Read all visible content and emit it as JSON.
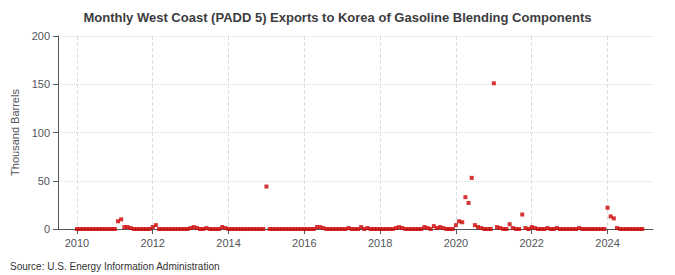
{
  "chart_data": {
    "type": "scatter",
    "title": "Monthly West Coast (PADD 5) Exports to Korea of Gasoline Blending Components",
    "ylabel": "Thousand Barrels",
    "annotations": [
      "Source: U.S. Energy Information Administration"
    ],
    "color": "#cc0000",
    "marker": "square",
    "grid": true,
    "xlim": [
      2009.5,
      2025.2
    ],
    "xticks": [
      2010,
      2012,
      2014,
      2016,
      2018,
      2020,
      2022,
      2024
    ],
    "ylim": [
      0,
      200
    ],
    "yticks": [
      0,
      50,
      100,
      150,
      200
    ],
    "x": [
      2010.0,
      2010.083,
      2010.167,
      2010.25,
      2010.333,
      2010.417,
      2010.5,
      2010.583,
      2010.667,
      2010.75,
      2010.833,
      2010.917,
      2011.0,
      2011.083,
      2011.167,
      2011.25,
      2011.333,
      2011.417,
      2011.5,
      2011.583,
      2011.667,
      2011.75,
      2011.833,
      2011.917,
      2012.0,
      2012.083,
      2012.167,
      2012.25,
      2012.333,
      2012.417,
      2012.5,
      2012.583,
      2012.667,
      2012.75,
      2012.833,
      2012.917,
      2013.0,
      2013.083,
      2013.167,
      2013.25,
      2013.333,
      2013.417,
      2013.5,
      2013.583,
      2013.667,
      2013.75,
      2013.833,
      2013.917,
      2014.0,
      2014.083,
      2014.167,
      2014.25,
      2014.333,
      2014.417,
      2014.5,
      2014.583,
      2014.667,
      2014.75,
      2014.833,
      2014.917,
      2015.0,
      2015.083,
      2015.167,
      2015.25,
      2015.333,
      2015.417,
      2015.5,
      2015.583,
      2015.667,
      2015.75,
      2015.833,
      2015.917,
      2016.0,
      2016.083,
      2016.167,
      2016.25,
      2016.333,
      2016.417,
      2016.5,
      2016.583,
      2016.667,
      2016.75,
      2016.833,
      2016.917,
      2017.0,
      2017.083,
      2017.167,
      2017.25,
      2017.333,
      2017.417,
      2017.5,
      2017.583,
      2017.667,
      2017.75,
      2017.833,
      2017.917,
      2018.0,
      2018.083,
      2018.167,
      2018.25,
      2018.333,
      2018.417,
      2018.5,
      2018.583,
      2018.667,
      2018.75,
      2018.833,
      2018.917,
      2019.0,
      2019.083,
      2019.167,
      2019.25,
      2019.333,
      2019.417,
      2019.5,
      2019.583,
      2019.667,
      2019.75,
      2019.833,
      2019.917,
      2020.0,
      2020.083,
      2020.167,
      2020.25,
      2020.333,
      2020.417,
      2020.5,
      2020.583,
      2020.667,
      2020.75,
      2020.833,
      2020.917,
      2021.0,
      2021.083,
      2021.167,
      2021.25,
      2021.333,
      2021.417,
      2021.5,
      2021.583,
      2021.667,
      2021.75,
      2021.833,
      2021.917,
      2022.0,
      2022.083,
      2022.167,
      2022.25,
      2022.333,
      2022.417,
      2022.5,
      2022.583,
      2022.667,
      2022.75,
      2022.833,
      2022.917,
      2023.0,
      2023.083,
      2023.167,
      2023.25,
      2023.333,
      2023.417,
      2023.5,
      2023.583,
      2023.667,
      2023.75,
      2023.833,
      2023.917,
      2024.0,
      2024.083,
      2024.167,
      2024.25,
      2024.333,
      2024.417,
      2024.5,
      2024.583,
      2024.667,
      2024.75,
      2024.833,
      2024.917
    ],
    "values": [
      0,
      0,
      0,
      0,
      0,
      0,
      0,
      0,
      0,
      0,
      0,
      0,
      0,
      8,
      10,
      2,
      2,
      1,
      0,
      0,
      0,
      0,
      0,
      0,
      2,
      4,
      0,
      0,
      0,
      0,
      0,
      0,
      0,
      0,
      0,
      0,
      1,
      2,
      1,
      0,
      0,
      1,
      0,
      0,
      0,
      0,
      2,
      1,
      0,
      0,
      0,
      0,
      0,
      0,
      0,
      0,
      0,
      0,
      0,
      0,
      44,
      0,
      0,
      0,
      0,
      0,
      0,
      0,
      0,
      0,
      0,
      0,
      0,
      0,
      0,
      0,
      2,
      2,
      1,
      0,
      0,
      0,
      0,
      0,
      0,
      0,
      1,
      0,
      0,
      0,
      2,
      0,
      1,
      0,
      0,
      0,
      0,
      0,
      0,
      0,
      0,
      1,
      2,
      1,
      0,
      0,
      0,
      0,
      0,
      0,
      2,
      1,
      0,
      3,
      1,
      2,
      1,
      0,
      0,
      0,
      4,
      8,
      7,
      33,
      27,
      53,
      4,
      2,
      1,
      0,
      0,
      0,
      151,
      2,
      1,
      0,
      0,
      5,
      1,
      0,
      0,
      15,
      1,
      0,
      2,
      1,
      0,
      0,
      0,
      1,
      0,
      0,
      1,
      0,
      0,
      0,
      0,
      0,
      0,
      1,
      0,
      0,
      0,
      0,
      0,
      0,
      0,
      0,
      22,
      13,
      11,
      1,
      0,
      0,
      0,
      0,
      0,
      0,
      0,
      0
    ]
  }
}
